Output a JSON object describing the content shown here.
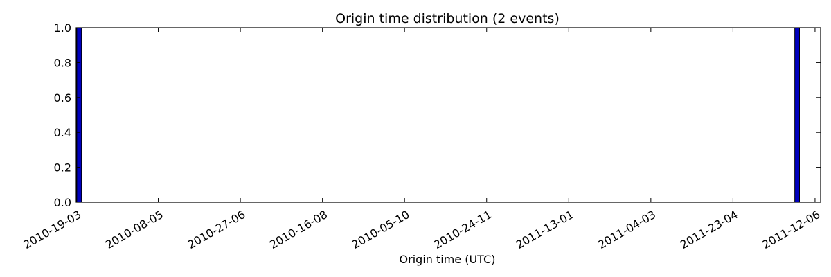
{
  "chart_data": {
    "type": "bar",
    "title": "Origin time distribution (2 events)",
    "xlabel": "Origin time (UTC)",
    "ylabel": "",
    "ylim": [
      0,
      1.0
    ],
    "yticks": [
      "0.0",
      "0.2",
      "0.4",
      "0.6",
      "0.8",
      "1.0"
    ],
    "xtick_labels": [
      "2010-19-03",
      "2010-08-05",
      "2010-27-06",
      "2010-16-08",
      "2010-05-10",
      "2010-24-11",
      "2011-13-01",
      "2011-04-03",
      "2011-23-04",
      "2011-12-06"
    ],
    "x_axis_range": [
      "2010-03-19",
      "2011-06-12"
    ],
    "bins": [
      {
        "date": "2010-03-20",
        "value": 1
      },
      {
        "date": "2011-05-28",
        "value": 1
      }
    ],
    "bar_color": "#0000bf",
    "grid": false
  }
}
